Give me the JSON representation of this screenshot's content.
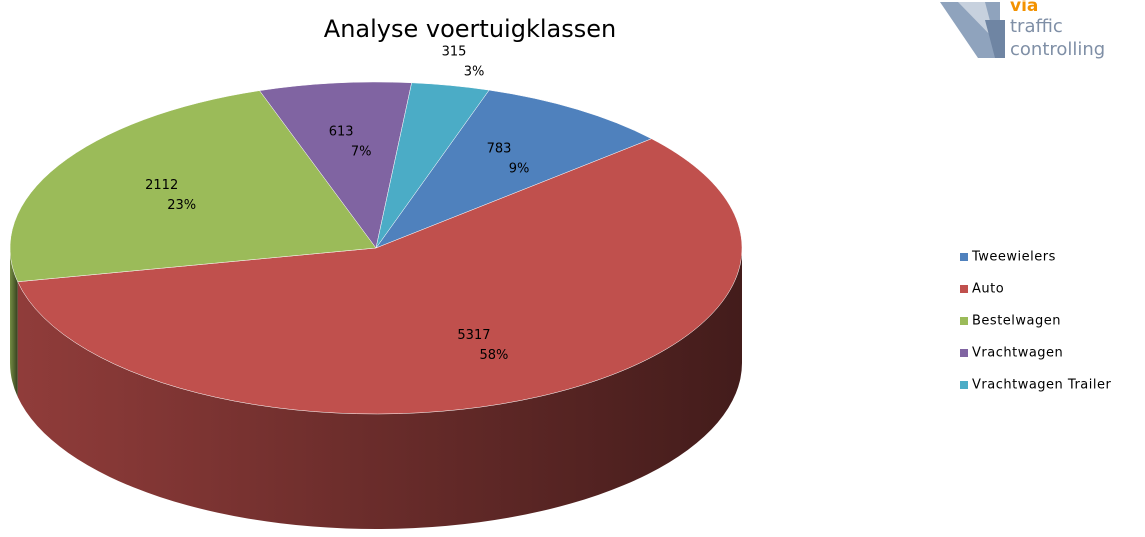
{
  "chart_data": {
    "type": "pie",
    "title": "Analyse voertuigklassen",
    "categories": [
      "Tweewielers",
      "Auto",
      "Bestelwagen",
      "Vrachtwagen",
      "Vrachtwagen Trailer"
    ],
    "values": [
      783,
      5317,
      2112,
      613,
      315
    ],
    "percent_labels": [
      "9%",
      "58%",
      "23%",
      "7%",
      "3%"
    ],
    "colors": [
      "#4f81bd",
      "#c0504d",
      "#9bbb59",
      "#8064a2",
      "#4bacc6"
    ],
    "legend": "right"
  },
  "logo": {
    "lines": [
      "via",
      "traffic",
      "controlling"
    ]
  }
}
